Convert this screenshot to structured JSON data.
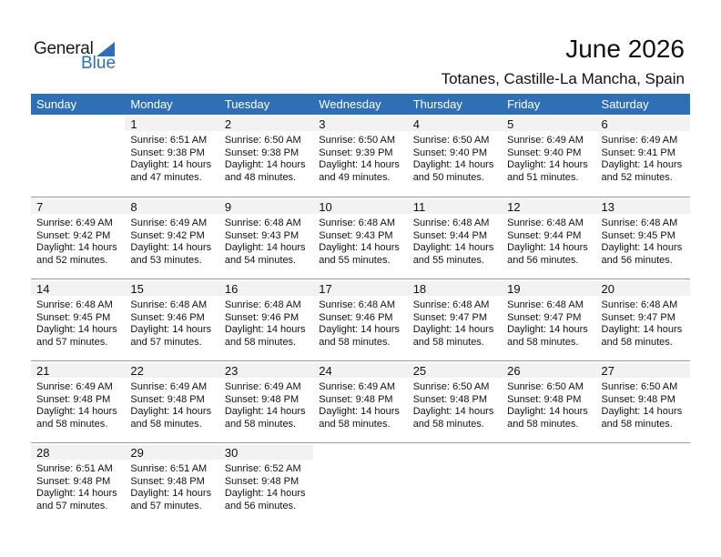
{
  "logo": {
    "text1": "General",
    "text2": "Blue"
  },
  "header": {
    "title": "June 2026",
    "location": "Totanes, Castille-La Mancha, Spain"
  },
  "colors": {
    "accent": "#2E70B3",
    "day_band": "#F2F2F2"
  },
  "weekdays": [
    "Sunday",
    "Monday",
    "Tuesday",
    "Wednesday",
    "Thursday",
    "Friday",
    "Saturday"
  ],
  "weeks": [
    [
      null,
      {
        "day": "1",
        "sunrise": "Sunrise: 6:51 AM",
        "sunset": "Sunset: 9:38 PM",
        "daylight": "Daylight: 14 hours",
        "minutes": "and 47 minutes."
      },
      {
        "day": "2",
        "sunrise": "Sunrise: 6:50 AM",
        "sunset": "Sunset: 9:38 PM",
        "daylight": "Daylight: 14 hours",
        "minutes": "and 48 minutes."
      },
      {
        "day": "3",
        "sunrise": "Sunrise: 6:50 AM",
        "sunset": "Sunset: 9:39 PM",
        "daylight": "Daylight: 14 hours",
        "minutes": "and 49 minutes."
      },
      {
        "day": "4",
        "sunrise": "Sunrise: 6:50 AM",
        "sunset": "Sunset: 9:40 PM",
        "daylight": "Daylight: 14 hours",
        "minutes": "and 50 minutes."
      },
      {
        "day": "5",
        "sunrise": "Sunrise: 6:49 AM",
        "sunset": "Sunset: 9:40 PM",
        "daylight": "Daylight: 14 hours",
        "minutes": "and 51 minutes."
      },
      {
        "day": "6",
        "sunrise": "Sunrise: 6:49 AM",
        "sunset": "Sunset: 9:41 PM",
        "daylight": "Daylight: 14 hours",
        "minutes": "and 52 minutes."
      }
    ],
    [
      {
        "day": "7",
        "sunrise": "Sunrise: 6:49 AM",
        "sunset": "Sunset: 9:42 PM",
        "daylight": "Daylight: 14 hours",
        "minutes": "and 52 minutes."
      },
      {
        "day": "8",
        "sunrise": "Sunrise: 6:49 AM",
        "sunset": "Sunset: 9:42 PM",
        "daylight": "Daylight: 14 hours",
        "minutes": "and 53 minutes."
      },
      {
        "day": "9",
        "sunrise": "Sunrise: 6:48 AM",
        "sunset": "Sunset: 9:43 PM",
        "daylight": "Daylight: 14 hours",
        "minutes": "and 54 minutes."
      },
      {
        "day": "10",
        "sunrise": "Sunrise: 6:48 AM",
        "sunset": "Sunset: 9:43 PM",
        "daylight": "Daylight: 14 hours",
        "minutes": "and 55 minutes."
      },
      {
        "day": "11",
        "sunrise": "Sunrise: 6:48 AM",
        "sunset": "Sunset: 9:44 PM",
        "daylight": "Daylight: 14 hours",
        "minutes": "and 55 minutes."
      },
      {
        "day": "12",
        "sunrise": "Sunrise: 6:48 AM",
        "sunset": "Sunset: 9:44 PM",
        "daylight": "Daylight: 14 hours",
        "minutes": "and 56 minutes."
      },
      {
        "day": "13",
        "sunrise": "Sunrise: 6:48 AM",
        "sunset": "Sunset: 9:45 PM",
        "daylight": "Daylight: 14 hours",
        "minutes": "and 56 minutes."
      }
    ],
    [
      {
        "day": "14",
        "sunrise": "Sunrise: 6:48 AM",
        "sunset": "Sunset: 9:45 PM",
        "daylight": "Daylight: 14 hours",
        "minutes": "and 57 minutes."
      },
      {
        "day": "15",
        "sunrise": "Sunrise: 6:48 AM",
        "sunset": "Sunset: 9:46 PM",
        "daylight": "Daylight: 14 hours",
        "minutes": "and 57 minutes."
      },
      {
        "day": "16",
        "sunrise": "Sunrise: 6:48 AM",
        "sunset": "Sunset: 9:46 PM",
        "daylight": "Daylight: 14 hours",
        "minutes": "and 58 minutes."
      },
      {
        "day": "17",
        "sunrise": "Sunrise: 6:48 AM",
        "sunset": "Sunset: 9:46 PM",
        "daylight": "Daylight: 14 hours",
        "minutes": "and 58 minutes."
      },
      {
        "day": "18",
        "sunrise": "Sunrise: 6:48 AM",
        "sunset": "Sunset: 9:47 PM",
        "daylight": "Daylight: 14 hours",
        "minutes": "and 58 minutes."
      },
      {
        "day": "19",
        "sunrise": "Sunrise: 6:48 AM",
        "sunset": "Sunset: 9:47 PM",
        "daylight": "Daylight: 14 hours",
        "minutes": "and 58 minutes."
      },
      {
        "day": "20",
        "sunrise": "Sunrise: 6:48 AM",
        "sunset": "Sunset: 9:47 PM",
        "daylight": "Daylight: 14 hours",
        "minutes": "and 58 minutes."
      }
    ],
    [
      {
        "day": "21",
        "sunrise": "Sunrise: 6:49 AM",
        "sunset": "Sunset: 9:48 PM",
        "daylight": "Daylight: 14 hours",
        "minutes": "and 58 minutes."
      },
      {
        "day": "22",
        "sunrise": "Sunrise: 6:49 AM",
        "sunset": "Sunset: 9:48 PM",
        "daylight": "Daylight: 14 hours",
        "minutes": "and 58 minutes."
      },
      {
        "day": "23",
        "sunrise": "Sunrise: 6:49 AM",
        "sunset": "Sunset: 9:48 PM",
        "daylight": "Daylight: 14 hours",
        "minutes": "and 58 minutes."
      },
      {
        "day": "24",
        "sunrise": "Sunrise: 6:49 AM",
        "sunset": "Sunset: 9:48 PM",
        "daylight": "Daylight: 14 hours",
        "minutes": "and 58 minutes."
      },
      {
        "day": "25",
        "sunrise": "Sunrise: 6:50 AM",
        "sunset": "Sunset: 9:48 PM",
        "daylight": "Daylight: 14 hours",
        "minutes": "and 58 minutes."
      },
      {
        "day": "26",
        "sunrise": "Sunrise: 6:50 AM",
        "sunset": "Sunset: 9:48 PM",
        "daylight": "Daylight: 14 hours",
        "minutes": "and 58 minutes."
      },
      {
        "day": "27",
        "sunrise": "Sunrise: 6:50 AM",
        "sunset": "Sunset: 9:48 PM",
        "daylight": "Daylight: 14 hours",
        "minutes": "and 58 minutes."
      }
    ],
    [
      {
        "day": "28",
        "sunrise": "Sunrise: 6:51 AM",
        "sunset": "Sunset: 9:48 PM",
        "daylight": "Daylight: 14 hours",
        "minutes": "and 57 minutes."
      },
      {
        "day": "29",
        "sunrise": "Sunrise: 6:51 AM",
        "sunset": "Sunset: 9:48 PM",
        "daylight": "Daylight: 14 hours",
        "minutes": "and 57 minutes."
      },
      {
        "day": "30",
        "sunrise": "Sunrise: 6:52 AM",
        "sunset": "Sunset: 9:48 PM",
        "daylight": "Daylight: 14 hours",
        "minutes": "and 56 minutes."
      },
      null,
      null,
      null,
      null
    ]
  ]
}
